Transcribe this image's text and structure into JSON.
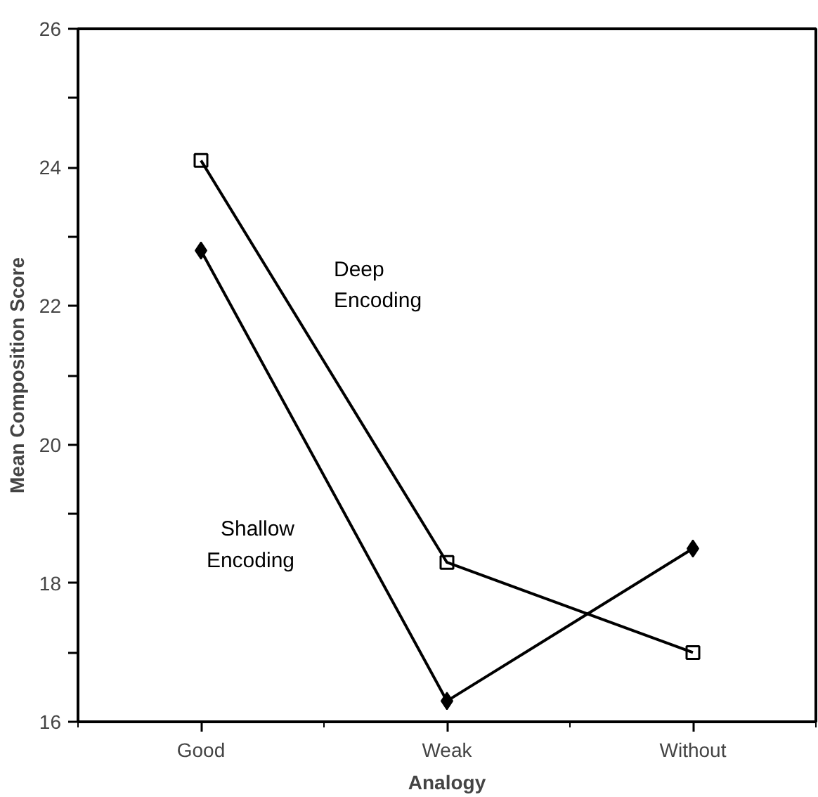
{
  "chart_data": {
    "type": "line",
    "xlabel": "Analogy",
    "ylabel": "Mean Composition Score",
    "categories": [
      "Good",
      "Weak",
      "Without"
    ],
    "series": [
      {
        "name": "Deep Encoding",
        "color": "#000000",
        "marker": "square",
        "values": [
          24.1,
          18.3,
          17.0
        ]
      },
      {
        "name": "Shallow Encoding",
        "color": "#000000",
        "marker": "diamond",
        "values": [
          22.8,
          16.3,
          18.5
        ]
      }
    ],
    "ylim": [
      16,
      26
    ],
    "yticks": [
      16,
      {
        "value": 17,
        "label": null
      },
      18,
      {
        "value": 19,
        "label": null
      },
      20,
      {
        "value": 21,
        "label": null
      },
      22,
      {
        "value": 23,
        "label": null
      },
      24,
      {
        "value": 25,
        "label": null
      },
      26
    ],
    "grid": false,
    "legend": false,
    "line_style": "solid"
  }
}
